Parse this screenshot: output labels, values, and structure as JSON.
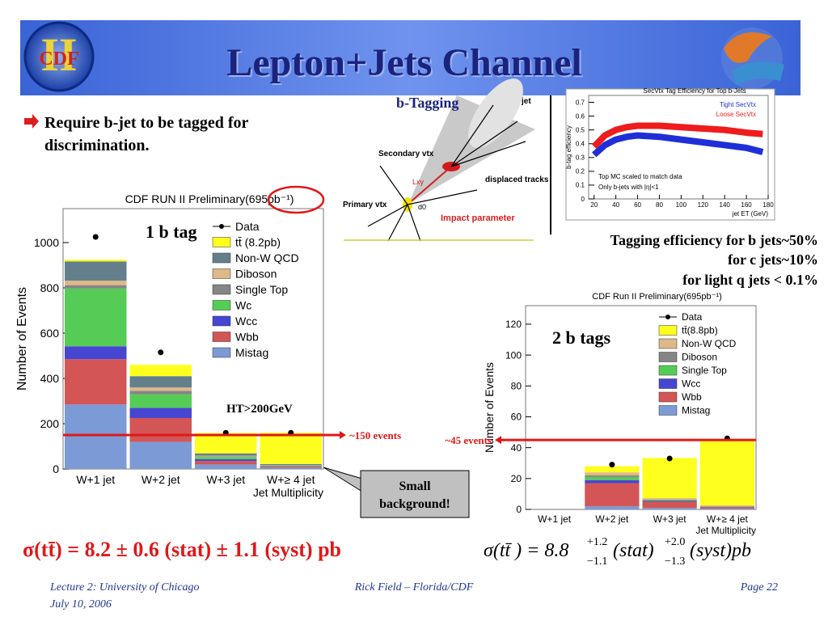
{
  "header": {
    "title": "Lepton+Jets Channel",
    "logo_text": "CDF",
    "logo_numeral": "II"
  },
  "bullet": [
    "Require b-jet to be tagged for",
    "discrimination."
  ],
  "diagram": {
    "title": "b-Tagging",
    "jet": "jet",
    "secondary": "Secondary vtx",
    "primary": "Primary vtx",
    "tracks": "displaced tracks",
    "impact": "Impact parameter",
    "lxy": "Lxy",
    "d0": "d0"
  },
  "efficiency_notes": [
    "Tagging efficiency for b jets~50%",
    "for c jets~10%",
    "for light q jets < 0.1%"
  ],
  "callout": [
    "Small",
    "background!"
  ],
  "cross_section": "σ(tt̄) =  8.2 ± 0.6 (stat) ± 1.1 (syst) pb",
  "cross_section_2": {
    "lead": "σ(tt̄ ) = 8.8",
    "stat_up": "+1.2",
    "stat_down": "−1.1",
    "stat": "(stat)",
    "syst_up": "+2.0",
    "syst_down": "−1.3",
    "syst": "(syst)pb"
  },
  "footer": {
    "lecture": "Lecture 2: University of Chicago",
    "date": "July 10, 2006",
    "author": "Rick Field – Florida/CDF",
    "page": "Page 22"
  },
  "chart_data": [
    {
      "type": "bar",
      "stacked": true,
      "title": "CDF RUN II Preliminary(695pb⁻¹)",
      "x_label": "Jet Multiplicity",
      "y_label": "Number of Events",
      "categories": [
        "W+1 jet",
        "W+2 jet",
        "W+3 jet",
        "W+≥ 4 jet"
      ],
      "ylim": [
        0,
        1150
      ],
      "yticks": [
        0,
        200,
        400,
        600,
        800,
        1000
      ],
      "series": [
        {
          "name": "Mistag",
          "color": "#7b9ad6",
          "values": [
            285,
            120,
            20,
            5
          ]
        },
        {
          "name": "Wbb",
          "color": "#d45555",
          "values": [
            200,
            105,
            15,
            5
          ]
        },
        {
          "name": "Wcc",
          "color": "#4646d2",
          "values": [
            57,
            45,
            8,
            2
          ]
        },
        {
          "name": "Wc",
          "color": "#55cc55",
          "values": [
            255,
            60,
            10,
            3
          ]
        },
        {
          "name": "Single Top",
          "color": "#858585",
          "values": [
            15,
            15,
            3,
            1
          ]
        },
        {
          "name": "Diboson",
          "color": "#deb887",
          "values": [
            20,
            15,
            3,
            1
          ]
        },
        {
          "name": "Non-W QCD",
          "color": "#647f8c",
          "values": [
            85,
            50,
            10,
            5
          ]
        },
        {
          "name": "tt̄ (8.2pb)",
          "color": "#ffff1e",
          "values": [
            8,
            50,
            90,
            138
          ]
        }
      ],
      "data": {
        "name": "Data",
        "values": [
          1025,
          515,
          160,
          160
        ]
      },
      "annotations": [
        "1 b tag",
        "HT>200GeV"
      ],
      "reference_line": {
        "value": 150,
        "label": "~150 events"
      }
    },
    {
      "type": "bar",
      "stacked": true,
      "title": "CDF Run II Preliminary(695pb⁻¹)",
      "x_label": "Jet Multiplicity",
      "y_label": "Number of Events",
      "categories": [
        "W+1 jet",
        "W+2 jet",
        "W+3 jet",
        "W+≥ 4 jet"
      ],
      "ylim": [
        0,
        132
      ],
      "yticks": [
        0,
        20,
        40,
        60,
        80,
        100,
        120
      ],
      "series": [
        {
          "name": "Mistag",
          "color": "#7b9ad6",
          "values": [
            null,
            2,
            1,
            0.5
          ]
        },
        {
          "name": "Wbb",
          "color": "#d45555",
          "values": [
            null,
            15,
            4,
            1
          ]
        },
        {
          "name": "Wcc",
          "color": "#4646d2",
          "values": [
            null,
            2,
            0.5,
            0.2
          ]
        },
        {
          "name": "Single Top",
          "color": "#55cc55",
          "values": [
            null,
            2,
            0.5,
            0.3
          ]
        },
        {
          "name": "Diboson",
          "color": "#858585",
          "values": [
            null,
            1,
            0.3,
            0.1
          ]
        },
        {
          "name": "Non-W QCD",
          "color": "#deb887",
          "values": [
            null,
            2,
            1,
            0.5
          ]
        },
        {
          "name": "tt̄(8.8pb)",
          "color": "#ffff1e",
          "values": [
            null,
            4,
            26,
            43
          ]
        }
      ],
      "data": {
        "name": "Data",
        "values": [
          null,
          29,
          33,
          46
        ]
      },
      "annotations": [
        "2 b tags"
      ],
      "reference_line": {
        "value": 45,
        "label": "~45 events"
      }
    },
    {
      "type": "line",
      "title": "SecVtx Tag Efficiency for Top b-Jets",
      "x_label": "jet ET (GeV)",
      "y_label": "b-tag efficiency",
      "x": [
        20,
        30,
        40,
        50,
        60,
        80,
        100,
        120,
        140,
        160,
        175
      ],
      "xlim": [
        15,
        180
      ],
      "xticks": [
        20,
        40,
        60,
        80,
        100,
        120,
        140,
        160,
        180
      ],
      "ylim": [
        0,
        0.75
      ],
      "yticks": [
        0,
        0.1,
        0.2,
        0.3,
        0.4,
        0.5,
        0.6,
        0.7
      ],
      "series": [
        {
          "name": "Tight SecVtx",
          "color": "#1f2fd8",
          "values": [
            0.32,
            0.39,
            0.43,
            0.45,
            0.46,
            0.45,
            0.43,
            0.41,
            0.39,
            0.37,
            0.34
          ]
        },
        {
          "name": "Loose SecVtx",
          "color": "#ee1c1c",
          "values": [
            0.38,
            0.46,
            0.5,
            0.52,
            0.53,
            0.53,
            0.52,
            0.51,
            0.5,
            0.48,
            0.47
          ]
        }
      ],
      "annotations": [
        "Top MC scaled to match data",
        "Only b-jets with |η|<1"
      ]
    }
  ]
}
